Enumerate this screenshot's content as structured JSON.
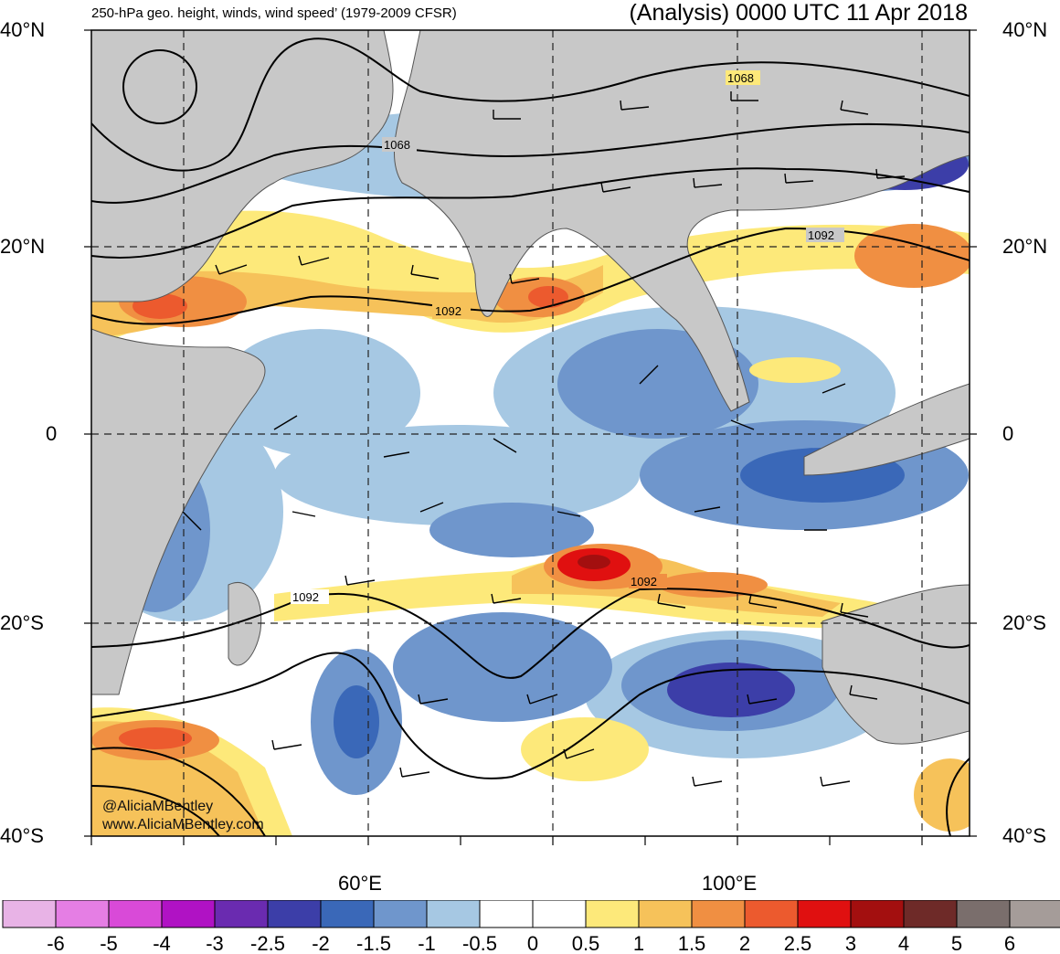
{
  "header": {
    "title_left": "250-hPa geo. height, winds, wind speed’ (1979-2009 CFSR)",
    "title_right": "(Analysis) 0000 UTC 11 Apr 2018"
  },
  "map": {
    "lat_labels": [
      "40°N",
      "20°N",
      "0",
      "20°S",
      "40°S"
    ],
    "lon_labels": [
      "60°E",
      "100°E"
    ],
    "contour_labels": [
      "1068",
      "1068",
      "1092",
      "1092",
      "1092",
      "1092"
    ],
    "credit_handle": "@AliciaMBentley",
    "credit_url": "www.AliciaMBentley.com"
  },
  "colorbar": {
    "labels": [
      "-6",
      "-5",
      "-4",
      "-3",
      "-2.5",
      "-2",
      "-1.5",
      "-1",
      "-0.5",
      "0",
      "0.5",
      "1",
      "1.5",
      "2",
      "2.5",
      "3",
      "4",
      "5",
      "6"
    ],
    "colors": [
      "#e8b3e6",
      "#e57ee4",
      "#d94ad8",
      "#b012c4",
      "#6a2bb0",
      "#3c3ea8",
      "#3a68b8",
      "#6f96cc",
      "#a6c8e3",
      "#ffffff",
      "#ffffff",
      "#fde97a",
      "#f6c25a",
      "#f08f42",
      "#ec5a2e",
      "#e01010",
      "#a30f0f",
      "#6e2a28",
      "#7a6e6c",
      "#a59c99"
    ]
  },
  "colors": {
    "land": "#c8c8c8",
    "jet_yellow": "#fde97a",
    "jet_orange": "#f6c25a",
    "jet_dark": "#ec5a2e",
    "jet_max": "#c0101c",
    "anom_blue": "#6f96cc",
    "anom_deep": "#3c3ea8"
  }
}
